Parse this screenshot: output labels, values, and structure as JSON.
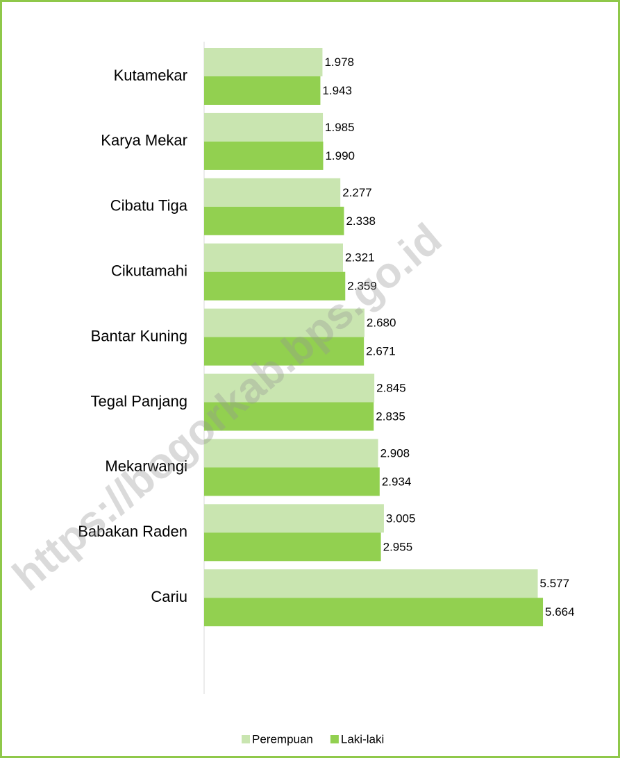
{
  "chart_data": {
    "type": "hbar",
    "categories": [
      "Kutamekar",
      "Karya Mekar",
      "Cibatu Tiga",
      "Cikutamahi",
      "Bantar Kuning",
      "Tegal Panjang",
      "Mekarwangi",
      "Babakan Raden",
      "Cariu"
    ],
    "series": [
      {
        "name": "Perempuan",
        "color": "#c9e5b0",
        "values": [
          1978,
          1985,
          2277,
          2321,
          2680,
          2845,
          2908,
          3005,
          5577
        ],
        "value_labels": [
          "1.978",
          "1.985",
          "2.277",
          "2.321",
          "2.680",
          "2.845",
          "2.908",
          "3.005",
          "5.577"
        ]
      },
      {
        "name": "Laki-laki",
        "color": "#92d050",
        "values": [
          1943,
          1990,
          2338,
          2359,
          2671,
          2835,
          2934,
          2955,
          5664
        ],
        "value_labels": [
          "1.943",
          "1.990",
          "2.338",
          "2.359",
          "2.671",
          "2.835",
          "2.934",
          "2.955",
          "5.664"
        ]
      }
    ],
    "xlim": [
      0,
      6000
    ],
    "legend": "bottom",
    "watermark": "https://bogorkab.bps.go.id"
  }
}
